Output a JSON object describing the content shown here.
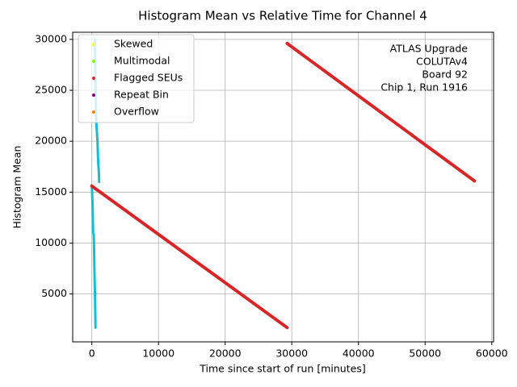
{
  "chart_data": {
    "type": "line",
    "title": "Histogram Mean vs Relative Time for Channel 4",
    "x_label": "Time since start of run [minutes]",
    "y_label": "Histogram Mean",
    "annotation": [
      "ATLAS Upgrade",
      "COLUTAv4 ",
      "Board 92",
      "Chip 1, Run 1916"
    ],
    "xlim": [
      -2870,
      60270
    ],
    "ylim": [
      300,
      30700
    ],
    "xticks": [
      0,
      10000,
      20000,
      30000,
      40000,
      50000,
      60000
    ],
    "yticks": [
      5000,
      10000,
      15000,
      20000,
      25000,
      30000
    ],
    "grid": true,
    "legend": "upper-left",
    "series": [
      {
        "color": "#17becf",
        "width": 3,
        "x": [
          0,
          100,
          200,
          300,
          400,
          500,
          550,
          550,
          450,
          550,
          650,
          750,
          850,
          950,
          1050,
          1100
        ],
        "values": [
          15600,
          14000,
          11000,
          10800,
          7000,
          4000,
          1700,
          null,
          30000,
          26000,
          22000,
          21000,
          20000,
          18000,
          17000,
          16000
        ]
      },
      {
        "name": "Skewed",
        "color": "#ffff33",
        "x": [],
        "values": []
      },
      {
        "name": "Multimodal",
        "color": "#7fff00",
        "x": [],
        "values": []
      },
      {
        "name": "Flagged SEUs",
        "color": "#d62728",
        "width": 4,
        "x": [
          0,
          29300,
          29300,
          29300,
          57400
        ],
        "values": [
          15600,
          1700,
          null,
          29600,
          16100
        ]
      },
      {
        "name": "Repeat Bin",
        "color": "#800080",
        "x": [],
        "values": []
      },
      {
        "name": "Overflow",
        "color": "#ff7f0e",
        "x": [],
        "values": []
      }
    ]
  }
}
